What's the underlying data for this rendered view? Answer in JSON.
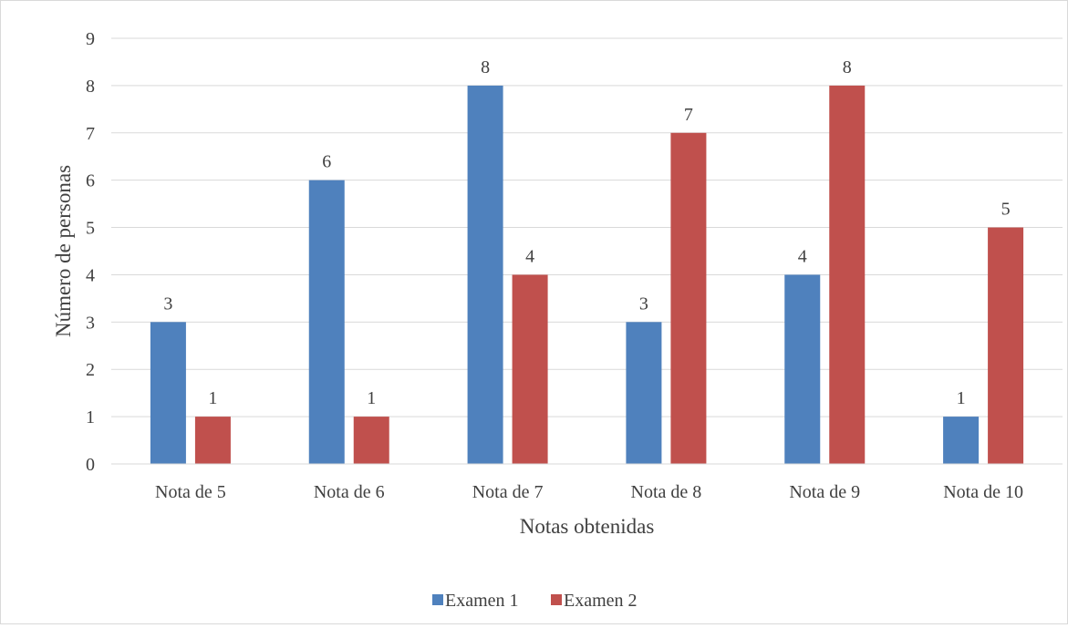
{
  "chart_data": {
    "type": "bar",
    "title": "",
    "xlabel": "Notas obtenidas",
    "ylabel": "Número de personas",
    "categories": [
      "Nota de 5",
      "Nota de 6",
      "Nota de 7",
      "Nota de 8",
      "Nota de 9",
      "Nota de 10"
    ],
    "series": [
      {
        "name": "Examen 1",
        "color": "#4f81bd",
        "values": [
          3,
          6,
          8,
          3,
          4,
          1
        ]
      },
      {
        "name": "Examen 2",
        "color": "#c0504d",
        "values": [
          1,
          1,
          4,
          7,
          8,
          5
        ]
      }
    ],
    "ylim": [
      0,
      9
    ],
    "yticks": [
      "0",
      "1",
      "2",
      "3",
      "4",
      "5",
      "6",
      "7",
      "8",
      "9"
    ],
    "grid": true,
    "gridline_color": "#d9d9d9",
    "data_labels": true,
    "legend_position": "bottom"
  }
}
